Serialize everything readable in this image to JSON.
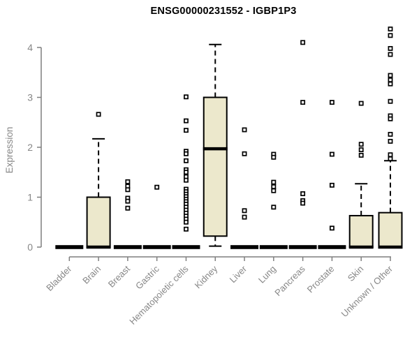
{
  "title": "ENSG00000231552 - IGBP1P3",
  "chart_data": {
    "type": "boxplot",
    "title": "ENSG00000231552 - IGBP1P3",
    "xlabel": "",
    "ylabel": "Expression",
    "ylim": [
      0,
      4.4
    ],
    "yticks": [
      0,
      1,
      2,
      3,
      4
    ],
    "grid": false,
    "legend": "none",
    "categories": [
      "Bladder",
      "Brain",
      "Breast",
      "Gastric",
      "Hematopoietic cells",
      "Kidney",
      "Liver",
      "Lung",
      "Pancreas",
      "Prostate",
      "Skin",
      "Unknown / Other"
    ],
    "series": [
      {
        "name": "Bladder",
        "flat": true,
        "q1": 0,
        "median": 0,
        "q3": 0,
        "whisker_low": 0,
        "whisker_high": 0,
        "outliers": []
      },
      {
        "name": "Brain",
        "flat": false,
        "q1": 0,
        "median": 0,
        "q3": 1.0,
        "whisker_low": 0,
        "whisker_high": 2.17,
        "outliers": [
          2.66
        ]
      },
      {
        "name": "Breast",
        "flat": true,
        "q1": 0,
        "median": 0,
        "q3": 0,
        "whisker_low": 0,
        "whisker_high": 0,
        "outliers": [
          1.31,
          1.22,
          1.15,
          0.98,
          0.92,
          0.78
        ]
      },
      {
        "name": "Gastric",
        "flat": true,
        "q1": 0,
        "median": 0,
        "q3": 0,
        "whisker_low": 0,
        "whisker_high": 0,
        "outliers": [
          1.2
        ]
      },
      {
        "name": "Hematopoietic cells",
        "flat": true,
        "q1": 0,
        "median": 0,
        "q3": 0,
        "whisker_low": 0,
        "whisker_high": 0,
        "outliers": [
          3.01,
          2.53,
          2.34,
          1.92,
          1.87,
          1.73,
          1.55,
          1.5,
          1.41,
          1.34,
          1.16,
          1.11,
          1.06,
          1.01,
          0.96,
          0.91,
          0.86,
          0.8,
          0.74,
          0.68,
          0.62,
          0.56,
          0.5,
          0.36
        ]
      },
      {
        "name": "Kidney",
        "flat": false,
        "q1": 0.22,
        "median": 1.97,
        "q3": 3.0,
        "whisker_low": 0.02,
        "whisker_high": 4.06,
        "outliers": []
      },
      {
        "name": "Liver",
        "flat": true,
        "q1": 0,
        "median": 0,
        "q3": 0,
        "whisker_low": 0,
        "whisker_high": 0,
        "outliers": [
          2.35,
          1.87,
          0.73,
          0.6
        ]
      },
      {
        "name": "Lung",
        "flat": true,
        "q1": 0,
        "median": 0,
        "q3": 0,
        "whisker_low": 0,
        "whisker_high": 0,
        "outliers": [
          1.86,
          1.8,
          1.3,
          1.21,
          1.13,
          0.8
        ]
      },
      {
        "name": "Pancreas",
        "flat": true,
        "q1": 0,
        "median": 0,
        "q3": 0,
        "whisker_low": 0,
        "whisker_high": 0,
        "outliers": [
          4.1,
          2.9,
          1.07,
          0.93,
          0.88
        ]
      },
      {
        "name": "Prostate",
        "flat": true,
        "q1": 0,
        "median": 0,
        "q3": 0,
        "whisker_low": 0,
        "whisker_high": 0,
        "outliers": [
          2.9,
          1.86,
          1.24,
          0.38
        ]
      },
      {
        "name": "Skin",
        "flat": false,
        "q1": 0,
        "median": 0,
        "q3": 0.63,
        "whisker_low": 0,
        "whisker_high": 1.27,
        "outliers": [
          2.88,
          2.06,
          1.95,
          1.84
        ]
      },
      {
        "name": "Unknown / Other",
        "flat": false,
        "q1": 0,
        "median": 0,
        "q3": 0.69,
        "whisker_low": 0,
        "whisker_high": 1.73,
        "outliers": [
          4.37,
          4.24,
          3.98,
          3.86,
          3.44,
          3.35,
          3.27,
          2.92,
          2.63,
          2.57,
          2.26,
          2.12,
          1.85,
          1.77
        ]
      }
    ],
    "colors": {
      "box_fill": "#ECE8CC",
      "box_stroke": "#000000",
      "median": "#000000",
      "whisker": "#000000",
      "outlier_stroke": "#000000",
      "outlier_fill": "#ffffff",
      "axis": "#7f7f7f",
      "tick_label": "#878787",
      "title": "#000000",
      "background": "#ffffff"
    }
  }
}
